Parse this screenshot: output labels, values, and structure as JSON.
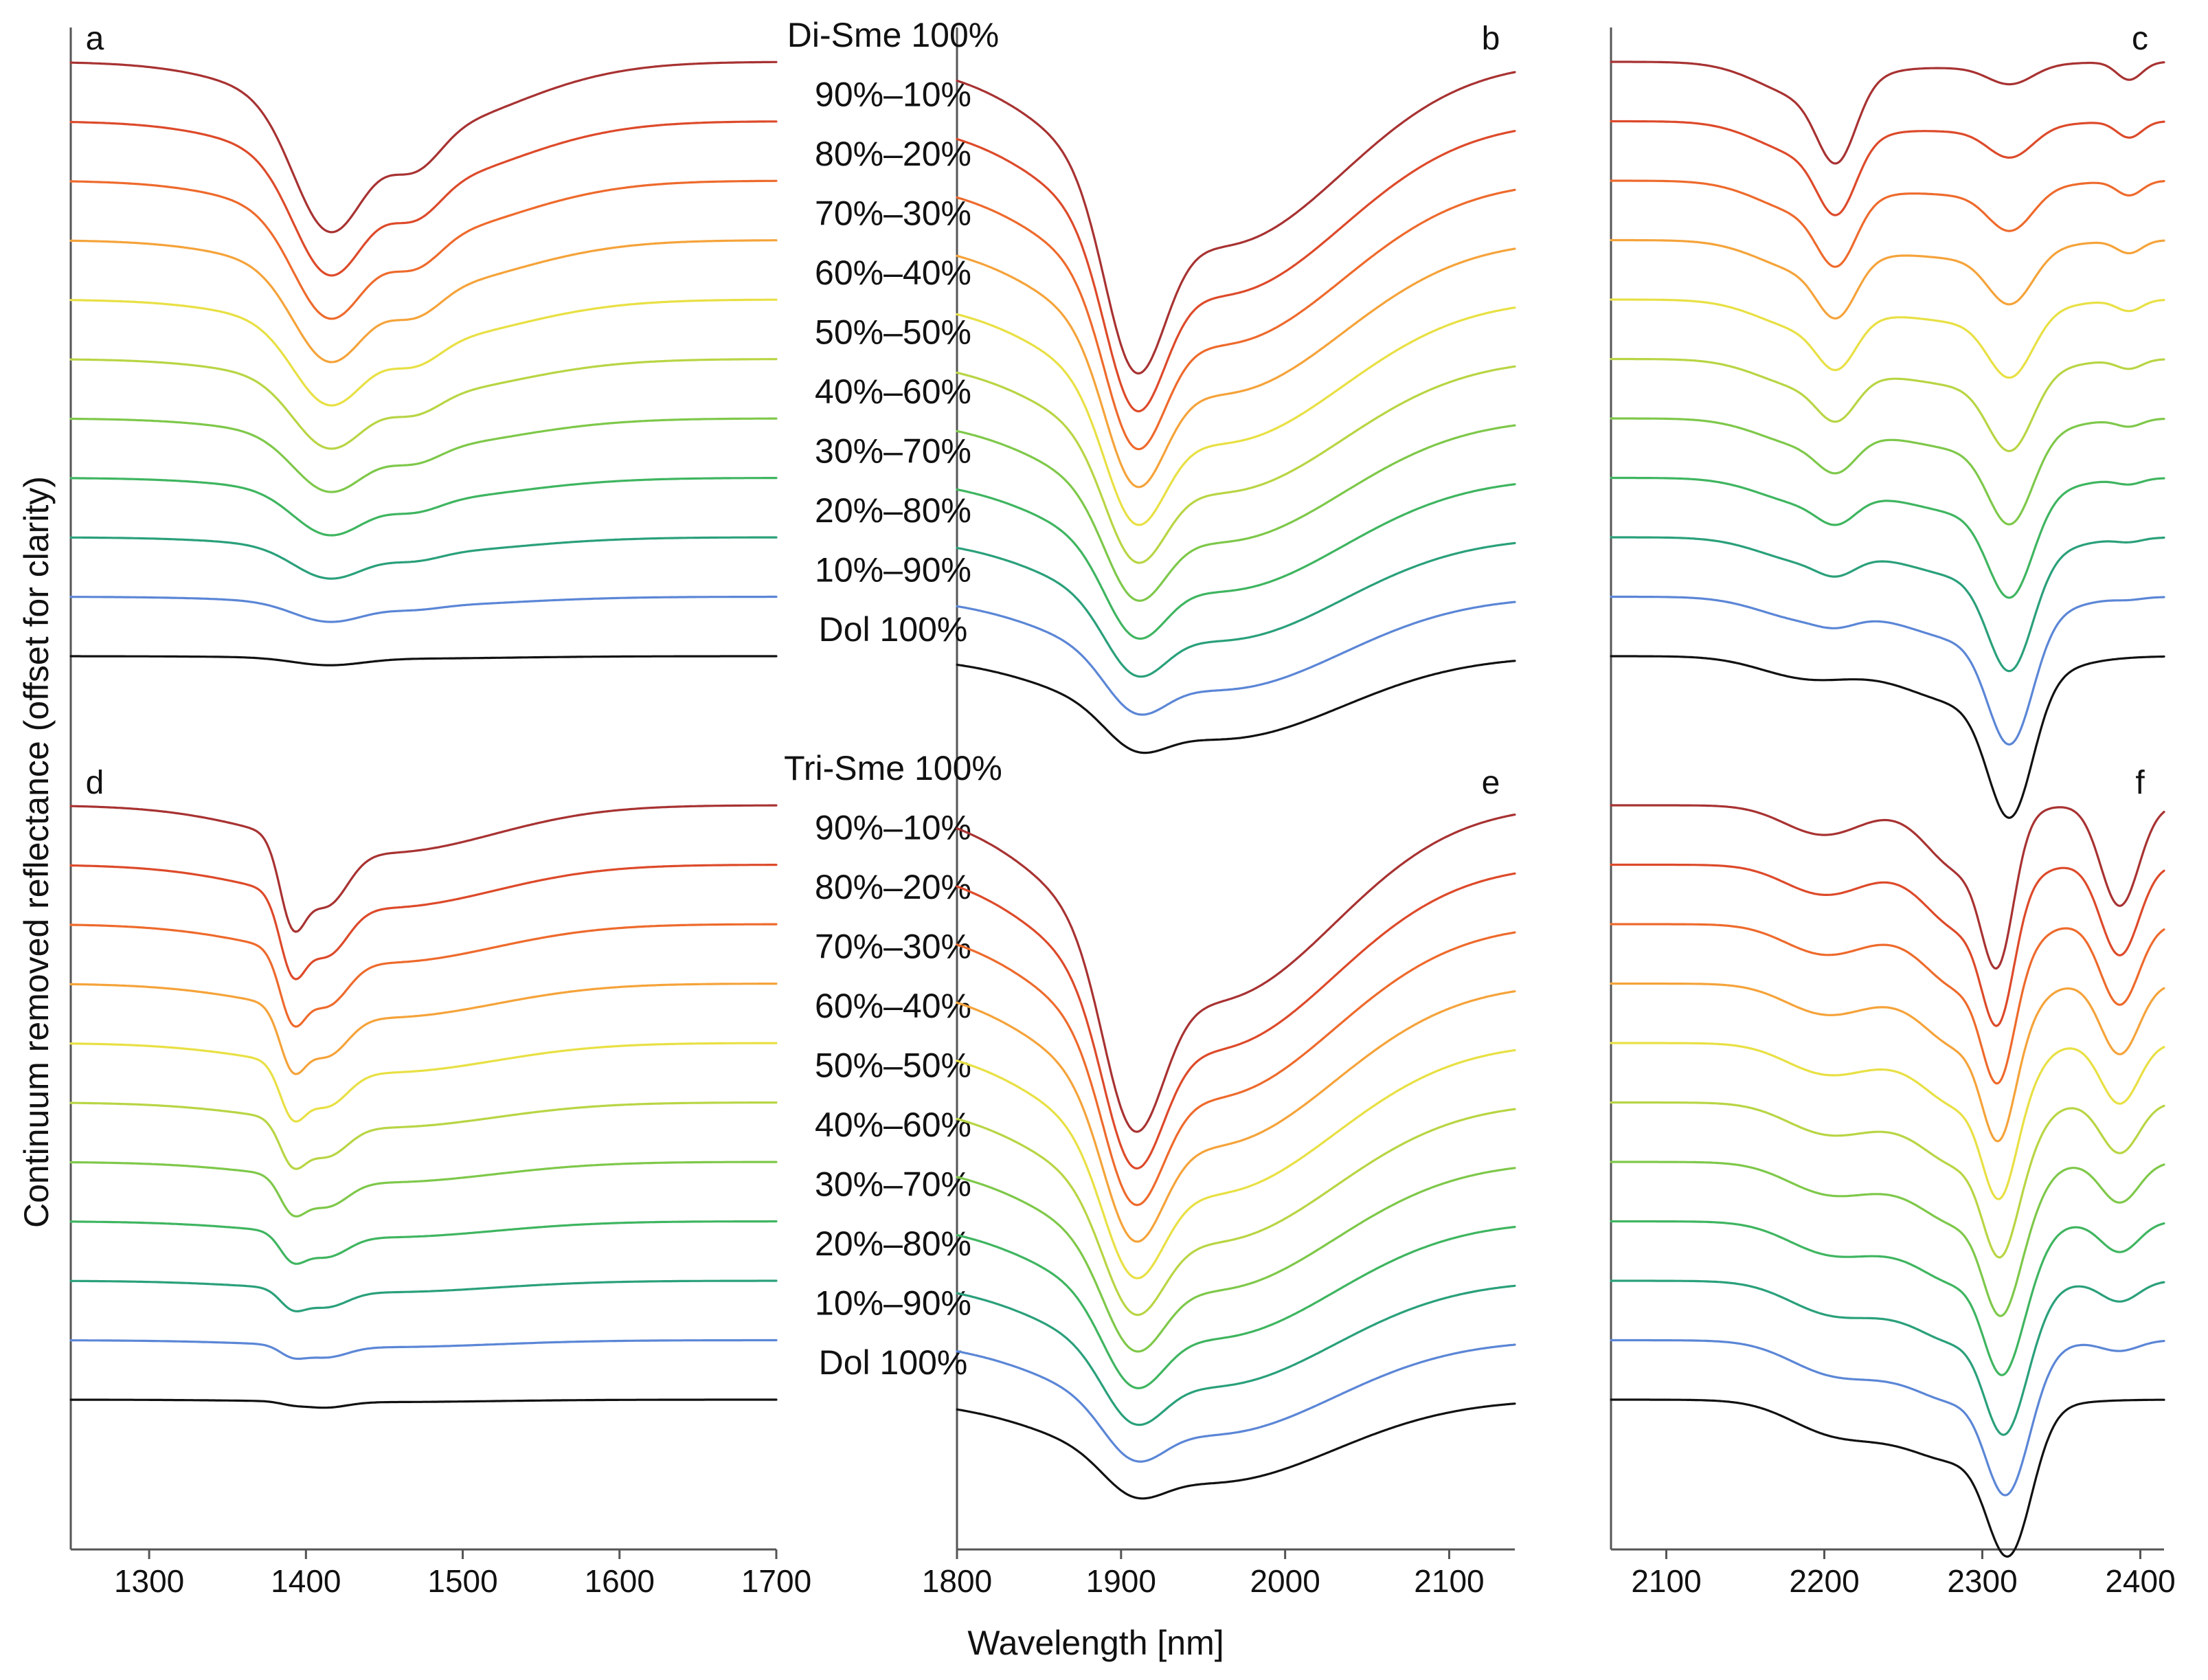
{
  "figure": {
    "y_axis_title": "Continuum removed reflectance (offset for clarity)",
    "x_axis_title": "Wavelength [nm]"
  },
  "chart_data": {
    "type": "line",
    "series_names": [
      "Di/Tri-Sme 100%",
      "90%–10%",
      "80%–20%",
      "70%–30%",
      "60%–40%",
      "50%–50%",
      "40%–60%",
      "30%–70%",
      "20%–80%",
      "10%–90%",
      "Dol 100%"
    ],
    "series_colors": [
      "#a83232",
      "#dd4a2a",
      "#ee6a2c",
      "#f5a33a",
      "#e8e044",
      "#b8d544",
      "#7ec84a",
      "#3fb560",
      "#2aa07a",
      "#5b86d6",
      "#111111"
    ],
    "rows": [
      {
        "name": "top",
        "labels": [
          "Di-Sme 100%",
          "90%–10%",
          "80%–20%",
          "70%–30%",
          "60%–40%",
          "50%–50%",
          "40%–60%",
          "30%–70%",
          "20%–80%",
          "10%–90%",
          "Dol 100%"
        ]
      },
      {
        "name": "bottom",
        "labels": [
          "Tri-Sme 100%",
          "90%–10%",
          "80%–20%",
          "70%–30%",
          "60%–40%",
          "50%–50%",
          "40%–60%",
          "30%–70%",
          "20%–80%",
          "10%–90%",
          "Dol 100%"
        ]
      }
    ],
    "columns": [
      {
        "xlim": [
          1250,
          1700
        ],
        "ticks": [
          1300,
          1400,
          1500,
          1600,
          1700
        ]
      },
      {
        "xlim": [
          1800,
          2140
        ],
        "ticks": [
          1800,
          1900,
          2000,
          2100
        ]
      },
      {
        "xlim": [
          2065,
          2415
        ],
        "ticks": [
          2100,
          2200,
          2300,
          2400
        ]
      }
    ],
    "panels": [
      {
        "letter": "a",
        "row": 0,
        "col": 0,
        "features": [
          {
            "center": 1414,
            "width": 22,
            "depth_end": 0.95,
            "depth_dol": 0.06
          },
          {
            "center": 1470,
            "width": 16,
            "depth_end": 0.3,
            "depth_dol": 0.0
          },
          {
            "center": 1460,
            "width": 70,
            "depth_end": 0.6,
            "depth_dol": 0.02
          }
        ]
      },
      {
        "letter": "b",
        "row": 0,
        "col": 1,
        "features": [
          {
            "center": 1908,
            "width": 18,
            "depth_end": 1.4,
            "depth_dol": 0.25
          },
          {
            "center": 1960,
            "width": 75,
            "depth_end": 1.55,
            "depth_dol": 0.7
          }
        ]
      },
      {
        "letter": "c",
        "row": 0,
        "col": 2,
        "features": [
          {
            "center": 2208,
            "width": 12,
            "depth_end": 0.6,
            "depth_dol": 0.0
          },
          {
            "center": 2190,
            "width": 30,
            "depth_end": 0.3,
            "depth_dol": 0.18
          },
          {
            "center": 2318,
            "width": 14,
            "depth_end": 0.15,
            "depth_dol": 1.05
          },
          {
            "center": 2290,
            "width": 40,
            "depth_end": 0.05,
            "depth_dol": 0.4
          },
          {
            "center": 2393,
            "width": 8,
            "depth_end": 0.15,
            "depth_dol": 0.0
          }
        ]
      },
      {
        "letter": "d",
        "row": 1,
        "col": 0,
        "features": [
          {
            "center": 1391,
            "width": 8,
            "depth_end": 0.6,
            "depth_dol": 0.02
          },
          {
            "center": 1412,
            "width": 14,
            "depth_end": 0.5,
            "depth_dol": 0.05
          },
          {
            "center": 1450,
            "width": 70,
            "depth_end": 0.4,
            "depth_dol": 0.02
          }
        ]
      },
      {
        "letter": "e",
        "row": 1,
        "col": 1,
        "features": [
          {
            "center": 1907,
            "width": 18,
            "depth_end": 1.4,
            "depth_dol": 0.25
          },
          {
            "center": 1955,
            "width": 75,
            "depth_end": 1.65,
            "depth_dol": 0.7
          }
        ]
      },
      {
        "letter": "f",
        "row": 1,
        "col": 2,
        "features": [
          {
            "center": 2310,
            "width": 10,
            "depth_end": 1.05,
            "depth_dol": 0.05
          },
          {
            "center": 2287,
            "width": 22,
            "depth_end": 0.55,
            "depth_dol": 0.2
          },
          {
            "center": 2387,
            "width": 12,
            "depth_end": 0.85,
            "depth_dol": 0.0
          },
          {
            "center": 2200,
            "width": 25,
            "depth_end": 0.25,
            "depth_dol": 0.15
          },
          {
            "center": 2318,
            "width": 14,
            "depth_end": 0.0,
            "depth_dol": 1.05
          },
          {
            "center": 2260,
            "width": 45,
            "depth_end": 0.0,
            "depth_dol": 0.35
          }
        ]
      }
    ]
  }
}
